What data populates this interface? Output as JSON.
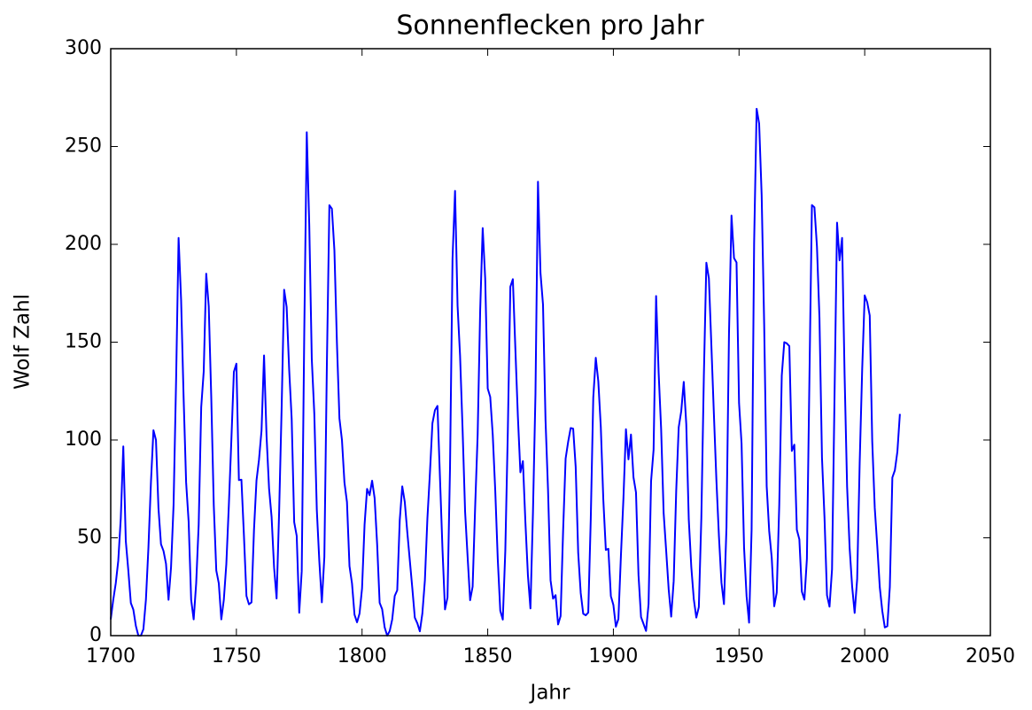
{
  "chart_data": {
    "type": "line",
    "title": "Sonnenflecken pro Jahr",
    "xlabel": "Jahr",
    "ylabel": "Wolf Zahl",
    "xlim": [
      1700,
      2050
    ],
    "xticks": [
      1700,
      1750,
      1800,
      1850,
      1900,
      1950,
      2000,
      2050
    ],
    "ylim": [
      0,
      300
    ],
    "yticks": [
      0,
      50,
      100,
      150,
      200,
      250,
      300
    ],
    "grid": false,
    "series": [
      {
        "color": "#0000ff",
        "x": [
          1700,
          1701,
          1702,
          1703,
          1704,
          1705,
          1706,
          1707,
          1708,
          1709,
          1710,
          1711,
          1712,
          1713,
          1714,
          1715,
          1716,
          1717,
          1718,
          1719,
          1720,
          1721,
          1722,
          1723,
          1724,
          1725,
          1726,
          1727,
          1728,
          1729,
          1730,
          1731,
          1732,
          1733,
          1734,
          1735,
          1736,
          1737,
          1738,
          1739,
          1740,
          1741,
          1742,
          1743,
          1744,
          1745,
          1746,
          1747,
          1748,
          1749,
          1750,
          1751,
          1752,
          1753,
          1754,
          1755,
          1756,
          1757,
          1758,
          1759,
          1760,
          1761,
          1762,
          1763,
          1764,
          1765,
          1766,
          1767,
          1768,
          1769,
          1770,
          1771,
          1772,
          1773,
          1774,
          1775,
          1776,
          1777,
          1778,
          1779,
          1780,
          1781,
          1782,
          1783,
          1784,
          1785,
          1786,
          1787,
          1788,
          1789,
          1790,
          1791,
          1792,
          1793,
          1794,
          1795,
          1796,
          1797,
          1798,
          1799,
          1800,
          1801,
          1802,
          1803,
          1804,
          1805,
          1806,
          1807,
          1808,
          1809,
          1810,
          1811,
          1812,
          1813,
          1814,
          1815,
          1816,
          1817,
          1818,
          1819,
          1820,
          1821,
          1822,
          1823,
          1824,
          1825,
          1826,
          1827,
          1828,
          1829,
          1830,
          1831,
          1832,
          1833,
          1834,
          1835,
          1836,
          1837,
          1838,
          1839,
          1840,
          1841,
          1842,
          1843,
          1844,
          1845,
          1846,
          1847,
          1848,
          1849,
          1850,
          1851,
          1852,
          1853,
          1854,
          1855,
          1856,
          1857,
          1858,
          1859,
          1860,
          1861,
          1862,
          1863,
          1864,
          1865,
          1866,
          1867,
          1868,
          1869,
          1870,
          1871,
          1872,
          1873,
          1874,
          1875,
          1876,
          1877,
          1878,
          1879,
          1880,
          1881,
          1882,
          1883,
          1884,
          1885,
          1886,
          1887,
          1888,
          1889,
          1890,
          1891,
          1892,
          1893,
          1894,
          1895,
          1896,
          1897,
          1898,
          1899,
          1900,
          1901,
          1902,
          1903,
          1904,
          1905,
          1906,
          1907,
          1908,
          1909,
          1910,
          1911,
          1912,
          1913,
          1914,
          1915,
          1916,
          1917,
          1918,
          1919,
          1920,
          1921,
          1922,
          1923,
          1924,
          1925,
          1926,
          1927,
          1928,
          1929,
          1930,
          1931,
          1932,
          1933,
          1934,
          1935,
          1936,
          1937,
          1938,
          1939,
          1940,
          1941,
          1942,
          1943,
          1944,
          1945,
          1946,
          1947,
          1948,
          1949,
          1950,
          1951,
          1952,
          1953,
          1954,
          1955,
          1956,
          1957,
          1958,
          1959,
          1960,
          1961,
          1962,
          1963,
          1964,
          1965,
          1966,
          1967,
          1968,
          1969,
          1970,
          1971,
          1972,
          1973,
          1974,
          1975,
          1976,
          1977,
          1978,
          1979,
          1980,
          1981,
          1982,
          1983,
          1984,
          1985,
          1986,
          1987,
          1988,
          1989,
          1990,
          1991,
          1992,
          1993,
          1994,
          1995,
          1996,
          1997,
          1998,
          1999,
          2000,
          2001,
          2002,
          2003,
          2004,
          2005,
          2006,
          2007,
          2008,
          2009,
          2010,
          2011,
          2012,
          2013,
          2014
        ],
        "values": [
          8.3,
          18.3,
          26.7,
          38.3,
          60.0,
          96.7,
          48.3,
          33.3,
          16.7,
          13.3,
          5.0,
          0.0,
          0.0,
          3.3,
          18.3,
          45.0,
          78.3,
          105.0,
          100.0,
          65.0,
          46.7,
          43.3,
          36.7,
          18.3,
          35.0,
          66.7,
          130.0,
          203.3,
          171.7,
          121.7,
          78.3,
          58.3,
          18.3,
          8.3,
          26.7,
          56.7,
          116.7,
          135.0,
          185.0,
          168.3,
          121.7,
          66.7,
          33.3,
          26.7,
          8.3,
          18.3,
          36.7,
          66.7,
          100.0,
          134.8,
          139.0,
          79.5,
          79.7,
          51.2,
          20.3,
          16.0,
          17.0,
          54.0,
          79.3,
          90.0,
          104.8,
          143.2,
          102.0,
          75.2,
          60.7,
          34.8,
          19.0,
          63.0,
          116.3,
          176.8,
          168.0,
          136.0,
          110.8,
          58.0,
          51.0,
          11.7,
          33.0,
          154.2,
          257.3,
          209.8,
          141.3,
          113.5,
          64.2,
          38.0,
          17.0,
          40.2,
          138.2,
          220.0,
          218.2,
          196.8,
          149.8,
          111.0,
          100.0,
          78.2,
          68.3,
          35.5,
          26.7,
          10.7,
          6.8,
          11.3,
          24.2,
          56.7,
          75.0,
          71.8,
          79.2,
          70.3,
          46.8,
          16.8,
          13.5,
          4.2,
          0.0,
          2.3,
          8.3,
          20.3,
          23.2,
          59.0,
          76.3,
          68.3,
          52.9,
          38.5,
          24.2,
          9.2,
          6.3,
          2.2,
          11.4,
          28.2,
          59.9,
          83.0,
          108.5,
          115.2,
          117.4,
          80.8,
          44.3,
          13.4,
          19.5,
          85.8,
          192.7,
          227.3,
          168.7,
          143.0,
          105.5,
          63.3,
          40.3,
          18.1,
          25.1,
          65.8,
          102.7,
          166.3,
          208.3,
          182.5,
          126.3,
          122.0,
          102.7,
          74.1,
          39.0,
          12.7,
          8.2,
          43.4,
          104.4,
          178.3,
          182.2,
          146.6,
          112.1,
          83.5,
          89.2,
          57.8,
          30.7,
          13.9,
          62.8,
          123.6,
          232.0,
          185.3,
          169.2,
          110.1,
          74.5,
          28.3,
          18.9,
          20.7,
          5.7,
          10.0,
          53.7,
          90.5,
          99.0,
          106.1,
          105.8,
          86.3,
          42.4,
          21.8,
          11.2,
          10.4,
          11.8,
          59.5,
          121.7,
          142.0,
          130.0,
          106.6,
          69.4,
          43.8,
          44.4,
          20.2,
          15.7,
          4.6,
          8.5,
          40.8,
          70.1,
          105.5,
          90.1,
          102.8,
          80.9,
          73.2,
          30.9,
          9.5,
          6.0,
          2.4,
          16.1,
          79.0,
          95.0,
          173.6,
          134.6,
          105.7,
          62.7,
          43.5,
          23.7,
          9.7,
          27.9,
          74.0,
          106.5,
          114.7,
          129.7,
          108.2,
          59.4,
          35.1,
          18.6,
          9.2,
          14.6,
          60.2,
          132.8,
          190.6,
          182.6,
          148.0,
          113.0,
          79.2,
          50.8,
          27.1,
          16.1,
          55.3,
          154.3,
          214.7,
          193.0,
          190.7,
          118.9,
          98.3,
          45.0,
          20.1,
          6.6,
          54.2,
          200.7,
          269.3,
          261.7,
          225.1,
          159.0,
          76.4,
          53.4,
          39.9,
          15.0,
          22.0,
          66.8,
          132.9,
          150.0,
          149.4,
          148.0,
          94.4,
          97.6,
          54.1,
          49.2,
          22.5,
          18.4,
          39.3,
          131.0,
          220.1,
          218.9,
          198.9,
          162.4,
          91.0,
          60.5,
          20.6,
          14.8,
          33.9,
          123.0,
          211.1,
          191.8,
          203.3,
          133.0,
          76.1,
          44.9,
          25.1,
          11.6,
          28.9,
          88.3,
          136.3,
          173.9,
          170.4,
          163.6,
          99.3,
          65.3,
          45.8,
          24.7,
          12.6,
          4.2,
          4.8,
          24.9,
          80.8,
          84.5,
          94.0,
          113.3
        ]
      }
    ]
  }
}
